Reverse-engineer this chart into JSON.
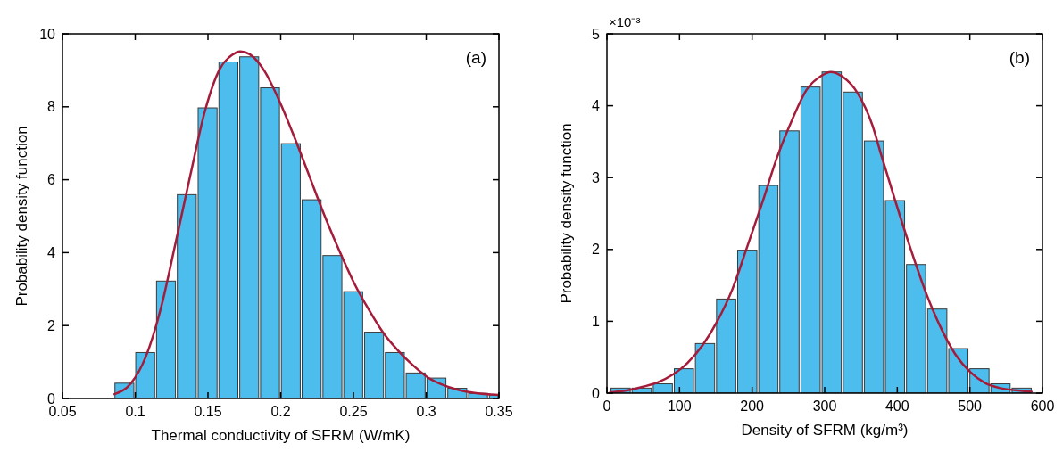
{
  "chart_data": [
    {
      "type": "histogram",
      "xlabel": "Thermal conductivity of SFRM (W/mK)",
      "ylabel": "Probability density function",
      "annotations": [
        "(a)"
      ],
      "xlim": [
        0.05,
        0.35
      ],
      "xticks": [
        0.05,
        0.1,
        0.15,
        0.2,
        0.25,
        0.3,
        0.35
      ],
      "ylim": [
        0,
        10
      ],
      "yticks": [
        0,
        2,
        4,
        6,
        8,
        10
      ],
      "series": [
        {
          "type": "histogram",
          "color": "#4dbded",
          "bins": [
            0.0854,
            0.0997,
            0.114,
            0.1283,
            0.1426,
            0.1569,
            0.1712,
            0.1855,
            0.1998,
            0.2141,
            0.2284,
            0.2427,
            0.257,
            0.2713,
            0.2856,
            0.2999,
            0.3142,
            0.3285,
            0.3428,
            0.35
          ],
          "values": [
            0.42,
            1.26,
            3.22,
            5.59,
            7.97,
            9.23,
            9.37,
            8.52,
            6.99,
            5.45,
            3.92,
            2.93,
            1.82,
            1.26,
            0.7,
            0.56,
            0.28,
            0.14,
            0.1
          ]
        },
        {
          "type": "line",
          "color": "#a51c3a",
          "x": [
            0.0857,
            0.0969,
            0.1072,
            0.1174,
            0.1276,
            0.1378,
            0.1481,
            0.1583,
            0.1665,
            0.1722,
            0.1787,
            0.189,
            0.1992,
            0.2094,
            0.2196,
            0.2298,
            0.2401,
            0.2503,
            0.2605,
            0.2707,
            0.281,
            0.2912,
            0.3014,
            0.3117,
            0.3219,
            0.3321,
            0.35
          ],
          "values": [
            0.12,
            0.41,
            1.14,
            2.44,
            4.24,
            6.11,
            7.91,
            9.05,
            9.42,
            9.52,
            9.44,
            8.97,
            8.15,
            7.17,
            6.11,
            5.05,
            4.07,
            3.18,
            2.44,
            1.79,
            1.3,
            0.9,
            0.57,
            0.37,
            0.24,
            0.16,
            0.1
          ]
        }
      ]
    },
    {
      "type": "histogram",
      "xlabel": "Density of SFRM (kg/m³)",
      "ylabel": "Probability density function",
      "annotations": [
        "(b)",
        "×10⁻³"
      ],
      "xlim": [
        0,
        600
      ],
      "xticks": [
        0,
        100,
        200,
        300,
        400,
        500,
        600
      ],
      "ylim": [
        0,
        5
      ],
      "yticks": [
        0,
        1,
        2,
        3,
        4,
        5
      ],
      "series": [
        {
          "type": "histogram",
          "color": "#4dbded",
          "bins": [
            4.3,
            33.4,
            62.5,
            91.5,
            120.6,
            149.7,
            178.8,
            207.9,
            236.9,
            266.0,
            295.1,
            324.2,
            353.3,
            382.3,
            411.4,
            440.5,
            469.6,
            498.7,
            527.7,
            556.8,
            585.9
          ],
          "values": [
            0.07,
            0.07,
            0.13,
            0.34,
            0.69,
            1.31,
            1.99,
            2.89,
            3.65,
            4.26,
            4.47,
            4.19,
            3.51,
            2.68,
            1.79,
            1.17,
            0.62,
            0.34,
            0.13,
            0.07
          ]
        },
        {
          "type": "line",
          "color": "#a51c3a",
          "x": [
            4.5,
            29,
            50,
            70,
            91,
            111,
            132,
            152,
            173,
            193,
            214,
            234,
            255,
            275,
            296,
            308,
            325,
            345,
            366,
            378,
            398,
            419,
            439,
            460,
            480,
            501,
            521,
            542,
            563,
            585
          ],
          "values": [
            0.01,
            0.04,
            0.09,
            0.15,
            0.26,
            0.42,
            0.67,
            1.0,
            1.45,
            2.03,
            2.65,
            3.27,
            3.8,
            4.22,
            4.42,
            4.47,
            4.4,
            4.18,
            3.72,
            3.31,
            2.65,
            1.99,
            1.41,
            0.91,
            0.54,
            0.29,
            0.14,
            0.07,
            0.04,
            0.02
          ]
        }
      ]
    }
  ]
}
